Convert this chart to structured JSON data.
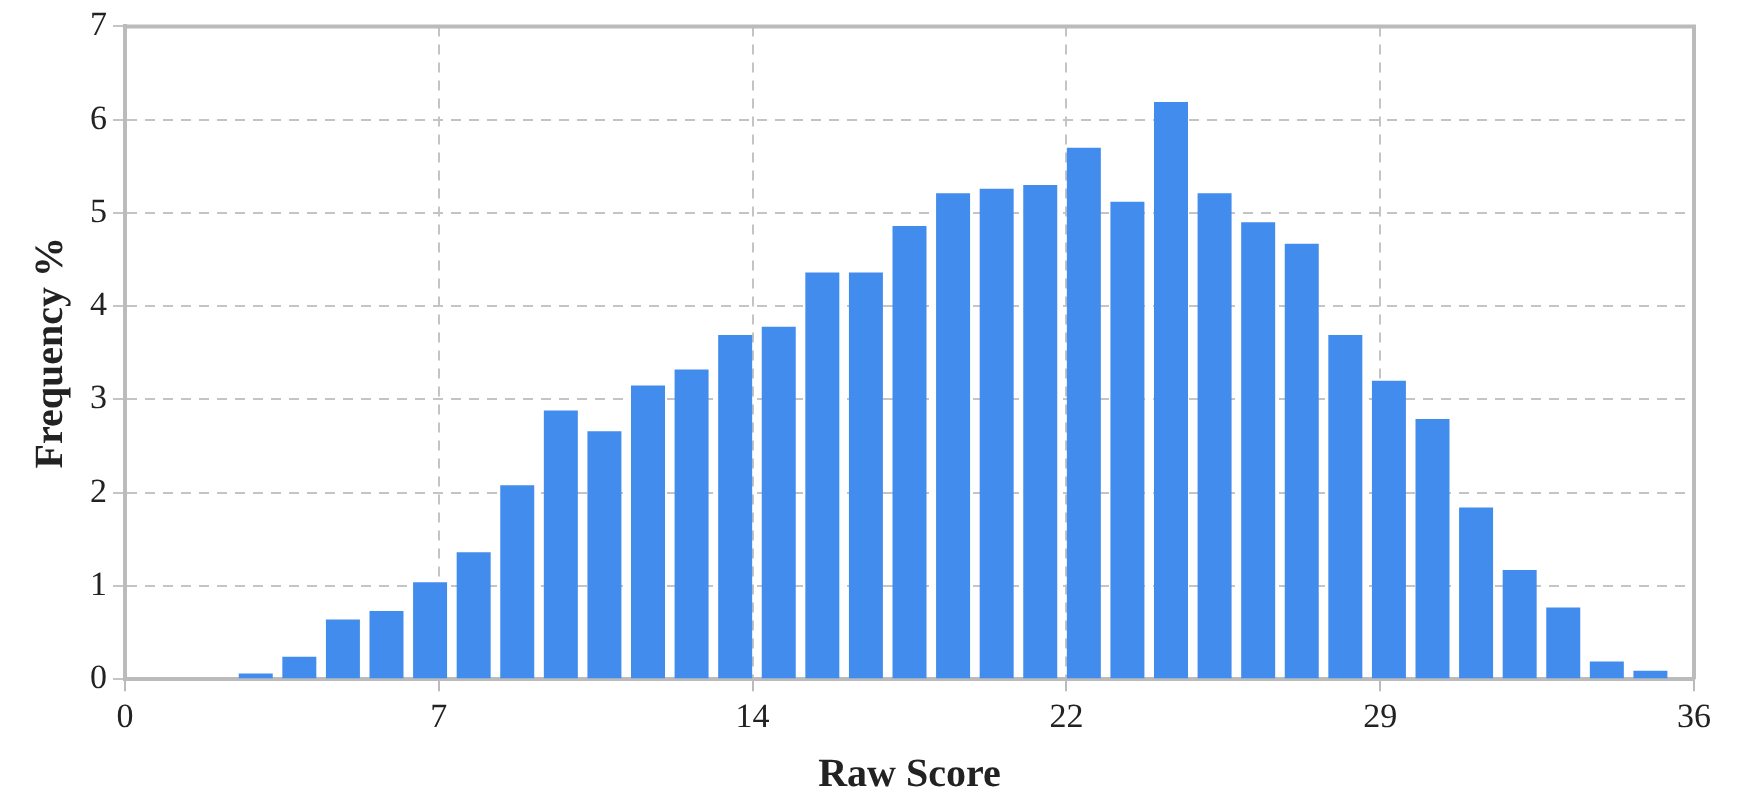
{
  "chart_data": {
    "type": "bar",
    "xlabel": "Raw Score",
    "ylabel": "Frequency %",
    "x": [
      3,
      4,
      5,
      6,
      7,
      8,
      9,
      10,
      11,
      12,
      13,
      14,
      15,
      16,
      17,
      18,
      19,
      20,
      21,
      22,
      23,
      24,
      25,
      26,
      27,
      28,
      29,
      30,
      31,
      32,
      33,
      34,
      35
    ],
    "values": [
      0.06,
      0.24,
      0.64,
      0.73,
      1.04,
      1.36,
      2.08,
      2.88,
      2.66,
      3.15,
      3.32,
      3.69,
      3.78,
      4.36,
      4.36,
      4.86,
      5.21,
      5.26,
      5.3,
      5.7,
      5.12,
      6.19,
      5.21,
      4.9,
      4.67,
      3.69,
      3.2,
      2.79,
      1.84,
      1.17,
      0.77,
      0.19,
      0.09
    ],
    "color": "#428ced",
    "xlim": [
      0,
      36
    ],
    "xticks": [
      0,
      {
        "value": 7.2,
        "label": "7"
      },
      {
        "value": 14.4,
        "label": "14"
      },
      {
        "value": 21.6,
        "label": "22"
      },
      {
        "value": 28.8,
        "label": "29"
      },
      36
    ],
    "ylim": [
      0,
      7
    ],
    "yticks": [
      0,
      1,
      2,
      3,
      4,
      5,
      6,
      7
    ],
    "grid": true
  }
}
